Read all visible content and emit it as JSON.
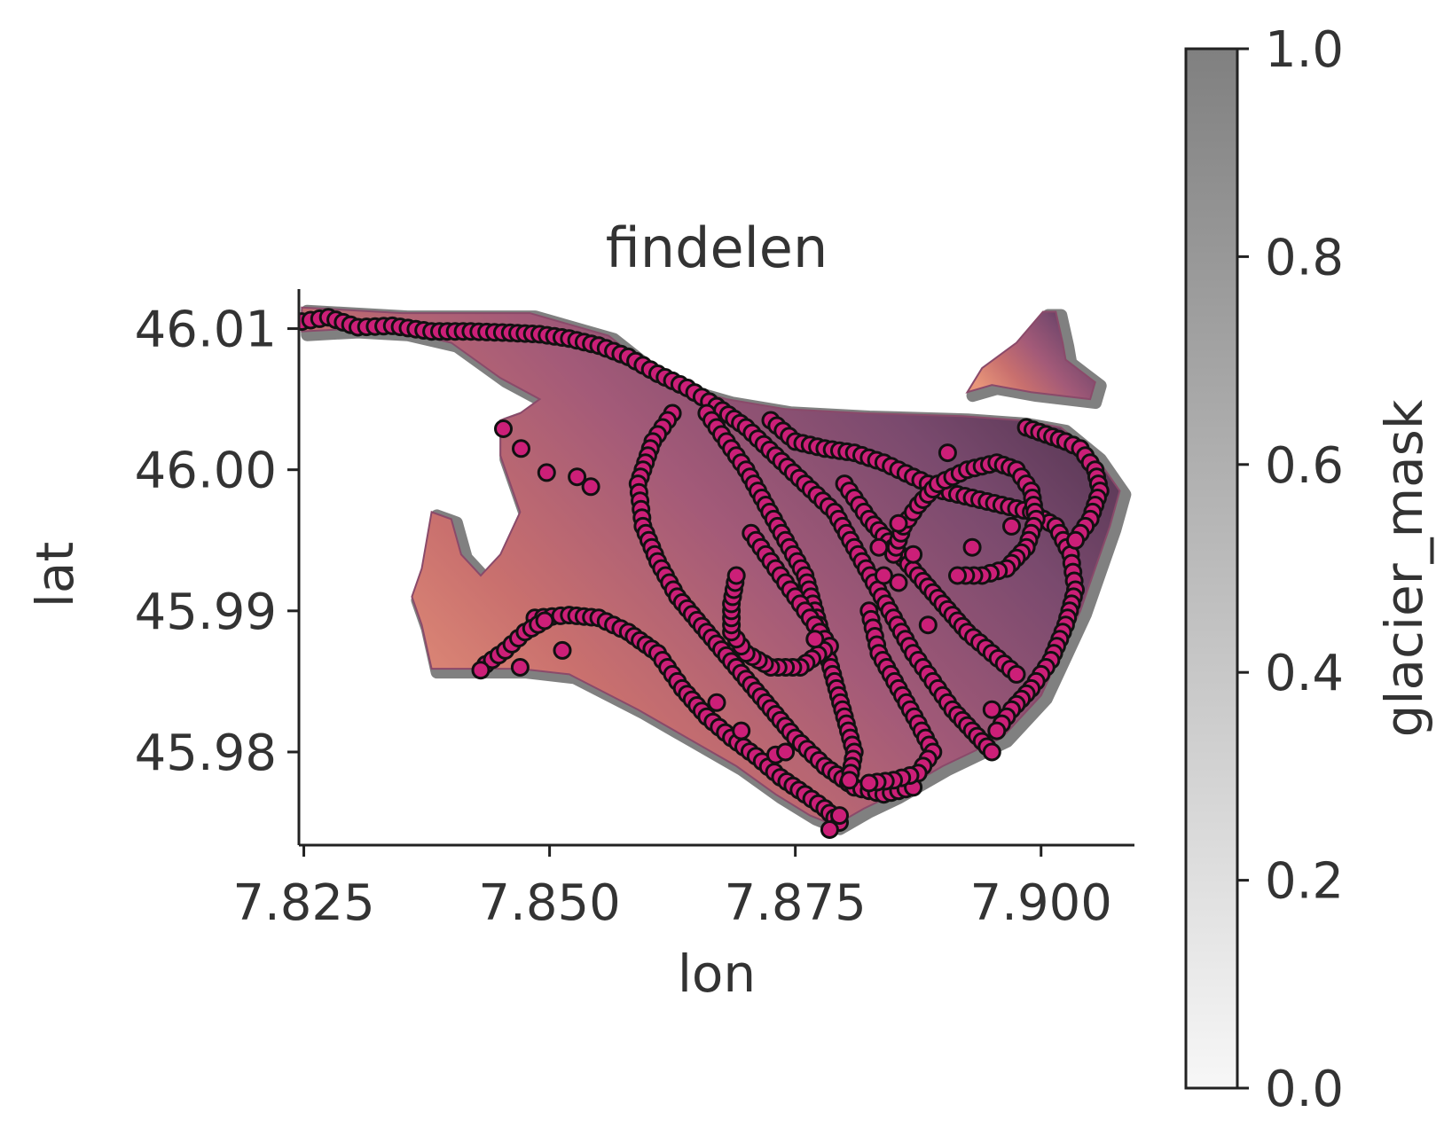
{
  "chart_data": {
    "type": "scatter",
    "title": "findelen",
    "xlabel": "lon",
    "ylabel": "lat",
    "xlim": [
      7.8245,
      7.9095
    ],
    "ylim": [
      45.9734,
      46.0128
    ],
    "xticks": [
      "7.825",
      "7.850",
      "7.875",
      "7.900"
    ],
    "xtick_values": [
      7.825,
      7.85,
      7.875,
      7.9
    ],
    "yticks": [
      "45.98",
      "45.99",
      "46.00",
      "46.01"
    ],
    "ytick_values": [
      45.98,
      45.99,
      46.0,
      46.01
    ],
    "grid": false,
    "colorbar": {
      "label": "glacier_mask",
      "range": [
        0.0,
        1.0
      ],
      "ticks": [
        "0.0",
        "0.2",
        "0.4",
        "0.6",
        "0.8",
        "1.0"
      ],
      "tick_values": [
        0.0,
        0.2,
        0.4,
        0.6,
        0.8,
        1.0
      ],
      "colors": [
        "#f7f7f7",
        "#808080"
      ]
    },
    "background_mask": {
      "color": "#808080",
      "description_value": 1.0
    },
    "glacier_grid": {
      "colormap": [
        "#e8967a",
        "#c9706e",
        "#a35a78",
        "#7a4a6e",
        "#4a2f4a"
      ],
      "regions": [
        [
          [
            7.8248,
            46.0115
          ],
          [
            7.835,
            46.0111
          ],
          [
            7.848,
            46.0111
          ],
          [
            7.856,
            46.0095
          ],
          [
            7.862,
            46.0062
          ],
          [
            7.868,
            46.005
          ],
          [
            7.874,
            46.0043
          ],
          [
            7.882,
            46.004
          ],
          [
            7.892,
            46.0038
          ],
          [
            7.898,
            46.0035
          ],
          [
            7.902,
            46.003
          ],
          [
            7.9055,
            46.001
          ],
          [
            7.908,
            45.9985
          ],
          [
            7.907,
            45.996
          ],
          [
            7.904,
            45.99
          ],
          [
            7.902,
            45.987
          ],
          [
            7.9,
            45.984
          ],
          [
            7.896,
            45.981
          ],
          [
            7.89,
            45.979
          ],
          [
            7.885,
            45.977
          ],
          [
            7.882,
            45.976
          ],
          [
            7.879,
            45.9748
          ],
          [
            7.8765,
            45.9755
          ],
          [
            7.873,
            45.977
          ],
          [
            7.869,
            45.979
          ],
          [
            7.864,
            45.981
          ],
          [
            7.859,
            45.983
          ],
          [
            7.852,
            45.9855
          ],
          [
            7.847,
            45.9859
          ],
          [
            7.838,
            45.9859
          ],
          [
            7.837,
            45.989
          ],
          [
            7.836,
            45.991
          ],
          [
            7.837,
            45.993
          ],
          [
            7.838,
            45.997
          ],
          [
            7.84,
            45.9965
          ],
          [
            7.841,
            45.994
          ],
          [
            7.843,
            45.9925
          ],
          [
            7.845,
            45.994
          ],
          [
            7.847,
            45.997
          ],
          [
            7.846,
            45.999
          ],
          [
            7.845,
            46.001
          ],
          [
            7.845,
            46.0035
          ],
          [
            7.847,
            46.004
          ],
          [
            7.849,
            46.005
          ],
          [
            7.845,
            46.0065
          ],
          [
            7.84,
            46.009
          ],
          [
            7.835,
            46.0098
          ],
          [
            7.83,
            46.01
          ],
          [
            7.8248,
            46.0098
          ]
        ],
        [
          [
            7.8925,
            46.0055
          ],
          [
            7.894,
            46.0072
          ],
          [
            7.8975,
            46.009
          ],
          [
            7.9002,
            46.0112
          ],
          [
            7.9015,
            46.0112
          ],
          [
            7.9022,
            46.009
          ],
          [
            7.9025,
            46.0078
          ],
          [
            7.904,
            46.007
          ],
          [
            7.9055,
            46.0062
          ],
          [
            7.905,
            46.005
          ],
          [
            7.899,
            46.0055
          ],
          [
            7.895,
            46.006
          ]
        ]
      ]
    },
    "points": {
      "marker_color": "#cc1f78",
      "edge_color": "#111111",
      "tracks": [
        [
          [
            7.8248,
            46.0105
          ],
          [
            7.8275,
            46.0108
          ],
          [
            7.8305,
            46.0101
          ],
          [
            7.834,
            46.0102
          ],
          [
            7.838,
            46.0098
          ],
          [
            7.842,
            46.0098
          ],
          [
            7.846,
            46.0097
          ],
          [
            7.849,
            46.0096
          ],
          [
            7.852,
            46.0093
          ],
          [
            7.855,
            46.0088
          ],
          [
            7.858,
            46.008
          ],
          [
            7.861,
            46.0068
          ],
          [
            7.864,
            46.0058
          ],
          [
            7.867,
            46.0045
          ],
          [
            7.87,
            46.003
          ],
          [
            7.873,
            46.001
          ],
          [
            7.876,
            45.999
          ],
          [
            7.879,
            45.997
          ],
          [
            7.881,
            45.9945
          ],
          [
            7.883,
            45.992
          ],
          [
            7.885,
            45.9895
          ],
          [
            7.887,
            45.987
          ],
          [
            7.889,
            45.985
          ],
          [
            7.891,
            45.983
          ],
          [
            7.893,
            45.9815
          ],
          [
            7.895,
            45.98
          ]
        ],
        [
          [
            7.8485,
            45.9895
          ],
          [
            7.852,
            45.9897
          ],
          [
            7.855,
            45.9895
          ],
          [
            7.858,
            45.9885
          ],
          [
            7.861,
            45.987
          ],
          [
            7.8635,
            45.9845
          ],
          [
            7.866,
            45.9825
          ],
          [
            7.8685,
            45.981
          ],
          [
            7.871,
            45.9797
          ],
          [
            7.8735,
            45.9782
          ],
          [
            7.876,
            45.977
          ],
          [
            7.878,
            45.976
          ],
          [
            7.8795,
            45.975
          ]
        ],
        [
          [
            7.8435,
            45.9862
          ],
          [
            7.8455,
            45.9872
          ],
          [
            7.8475,
            45.9885
          ],
          [
            7.8495,
            45.9893
          ]
        ],
        [
          [
            7.8625,
            46.004
          ],
          [
            7.8605,
            46.002
          ],
          [
            7.859,
            45.999
          ],
          [
            7.8595,
            45.996
          ],
          [
            7.861,
            45.9935
          ],
          [
            7.863,
            45.991
          ],
          [
            7.866,
            45.9885
          ],
          [
            7.869,
            45.986
          ],
          [
            7.872,
            45.9835
          ],
          [
            7.875,
            45.981
          ],
          [
            7.878,
            45.979
          ],
          [
            7.881,
            45.9775
          ],
          [
            7.884,
            45.977
          ],
          [
            7.887,
            45.9775
          ]
        ],
        [
          [
            7.866,
            46.004
          ],
          [
            7.868,
            46.002
          ],
          [
            7.87,
            46.0
          ],
          [
            7.872,
            45.9975
          ],
          [
            7.874,
            45.995
          ],
          [
            7.876,
            45.9925
          ],
          [
            7.877,
            45.99
          ],
          [
            7.878,
            45.9875
          ],
          [
            7.879,
            45.985
          ],
          [
            7.88,
            45.9825
          ],
          [
            7.881,
            45.98
          ],
          [
            7.8805,
            45.978
          ]
        ],
        [
          [
            7.8725,
            46.0035
          ],
          [
            7.875,
            46.002
          ],
          [
            7.878,
            46.0015
          ],
          [
            7.881,
            46.0012
          ],
          [
            7.884,
            46.0005
          ],
          [
            7.887,
            45.9995
          ],
          [
            7.89,
            45.9985
          ],
          [
            7.893,
            45.998
          ],
          [
            7.896,
            45.9975
          ],
          [
            7.899,
            45.997
          ],
          [
            7.9015,
            45.996
          ],
          [
            7.903,
            45.994
          ],
          [
            7.9035,
            45.9915
          ],
          [
            7.9025,
            45.989
          ],
          [
            7.901,
            45.9865
          ],
          [
            7.899,
            45.9845
          ],
          [
            7.897,
            45.983
          ],
          [
            7.8955,
            45.9815
          ]
        ],
        [
          [
            7.88,
            45.999
          ],
          [
            7.8825,
            45.9965
          ],
          [
            7.885,
            45.9945
          ],
          [
            7.8875,
            45.9925
          ],
          [
            7.89,
            45.9905
          ],
          [
            7.8925,
            45.9885
          ],
          [
            7.895,
            45.987
          ],
          [
            7.8975,
            45.9855
          ]
        ],
        [
          [
            7.8985,
            46.003
          ],
          [
            7.9005,
            46.0025
          ],
          [
            7.9025,
            46.002
          ],
          [
            7.904,
            46.0015
          ],
          [
            7.9055,
            46.0
          ],
          [
            7.906,
            45.9985
          ],
          [
            7.905,
            45.9965
          ],
          [
            7.9035,
            45.995
          ]
        ],
        [
          [
            7.8825,
            45.99
          ],
          [
            7.8835,
            45.987
          ],
          [
            7.8855,
            45.9845
          ],
          [
            7.8875,
            45.982
          ],
          [
            7.889,
            45.98
          ],
          [
            7.8875,
            45.9785
          ],
          [
            7.885,
            45.978
          ],
          [
            7.8825,
            45.9778
          ]
        ],
        [
          [
            7.8705,
            45.9955
          ],
          [
            7.8725,
            45.9935
          ],
          [
            7.8745,
            45.9915
          ],
          [
            7.8765,
            45.9895
          ],
          [
            7.8785,
            45.9875
          ],
          [
            7.8755,
            45.986
          ],
          [
            7.8725,
            45.986
          ],
          [
            7.87,
            45.987
          ],
          [
            7.8685,
            45.9885
          ],
          [
            7.8685,
            45.9905
          ],
          [
            7.869,
            45.9925
          ]
        ],
        [
          [
            7.885,
            45.994
          ],
          [
            7.886,
            45.996
          ],
          [
            7.8875,
            45.9975
          ],
          [
            7.8895,
            45.999
          ],
          [
            7.8925,
            46.0
          ],
          [
            7.8955,
            46.0005
          ],
          [
            7.8975,
            46.0
          ],
          [
            7.899,
            45.9985
          ],
          [
            7.8995,
            45.9965
          ],
          [
            7.8985,
            45.9945
          ],
          [
            7.8965,
            45.993
          ],
          [
            7.894,
            45.9925
          ],
          [
            7.8915,
            45.9925
          ]
        ]
      ],
      "isolated": [
        [
          7.8453,
          46.0029
        ],
        [
          7.8471,
          46.0015
        ],
        [
          7.8497,
          45.9998
        ],
        [
          7.8528,
          45.9995
        ],
        [
          7.8542,
          45.9988
        ],
        [
          7.8513,
          45.9872
        ],
        [
          7.843,
          45.9858
        ],
        [
          7.847,
          45.986
        ],
        [
          7.867,
          45.9835
        ],
        [
          7.8695,
          45.9815
        ],
        [
          7.873,
          45.9798
        ],
        [
          7.874,
          45.98
        ],
        [
          7.8905,
          46.0012
        ],
        [
          7.8855,
          45.9962
        ],
        [
          7.8835,
          45.9945
        ],
        [
          7.884,
          45.9925
        ],
        [
          7.8855,
          45.992
        ],
        [
          7.893,
          45.9945
        ],
        [
          7.897,
          45.996
        ],
        [
          7.887,
          45.994
        ],
        [
          7.877,
          45.988
        ],
        [
          7.8885,
          45.989
        ],
        [
          7.895,
          45.983
        ],
        [
          7.8795,
          45.9755
        ],
        [
          7.8785,
          45.9745
        ]
      ]
    }
  }
}
